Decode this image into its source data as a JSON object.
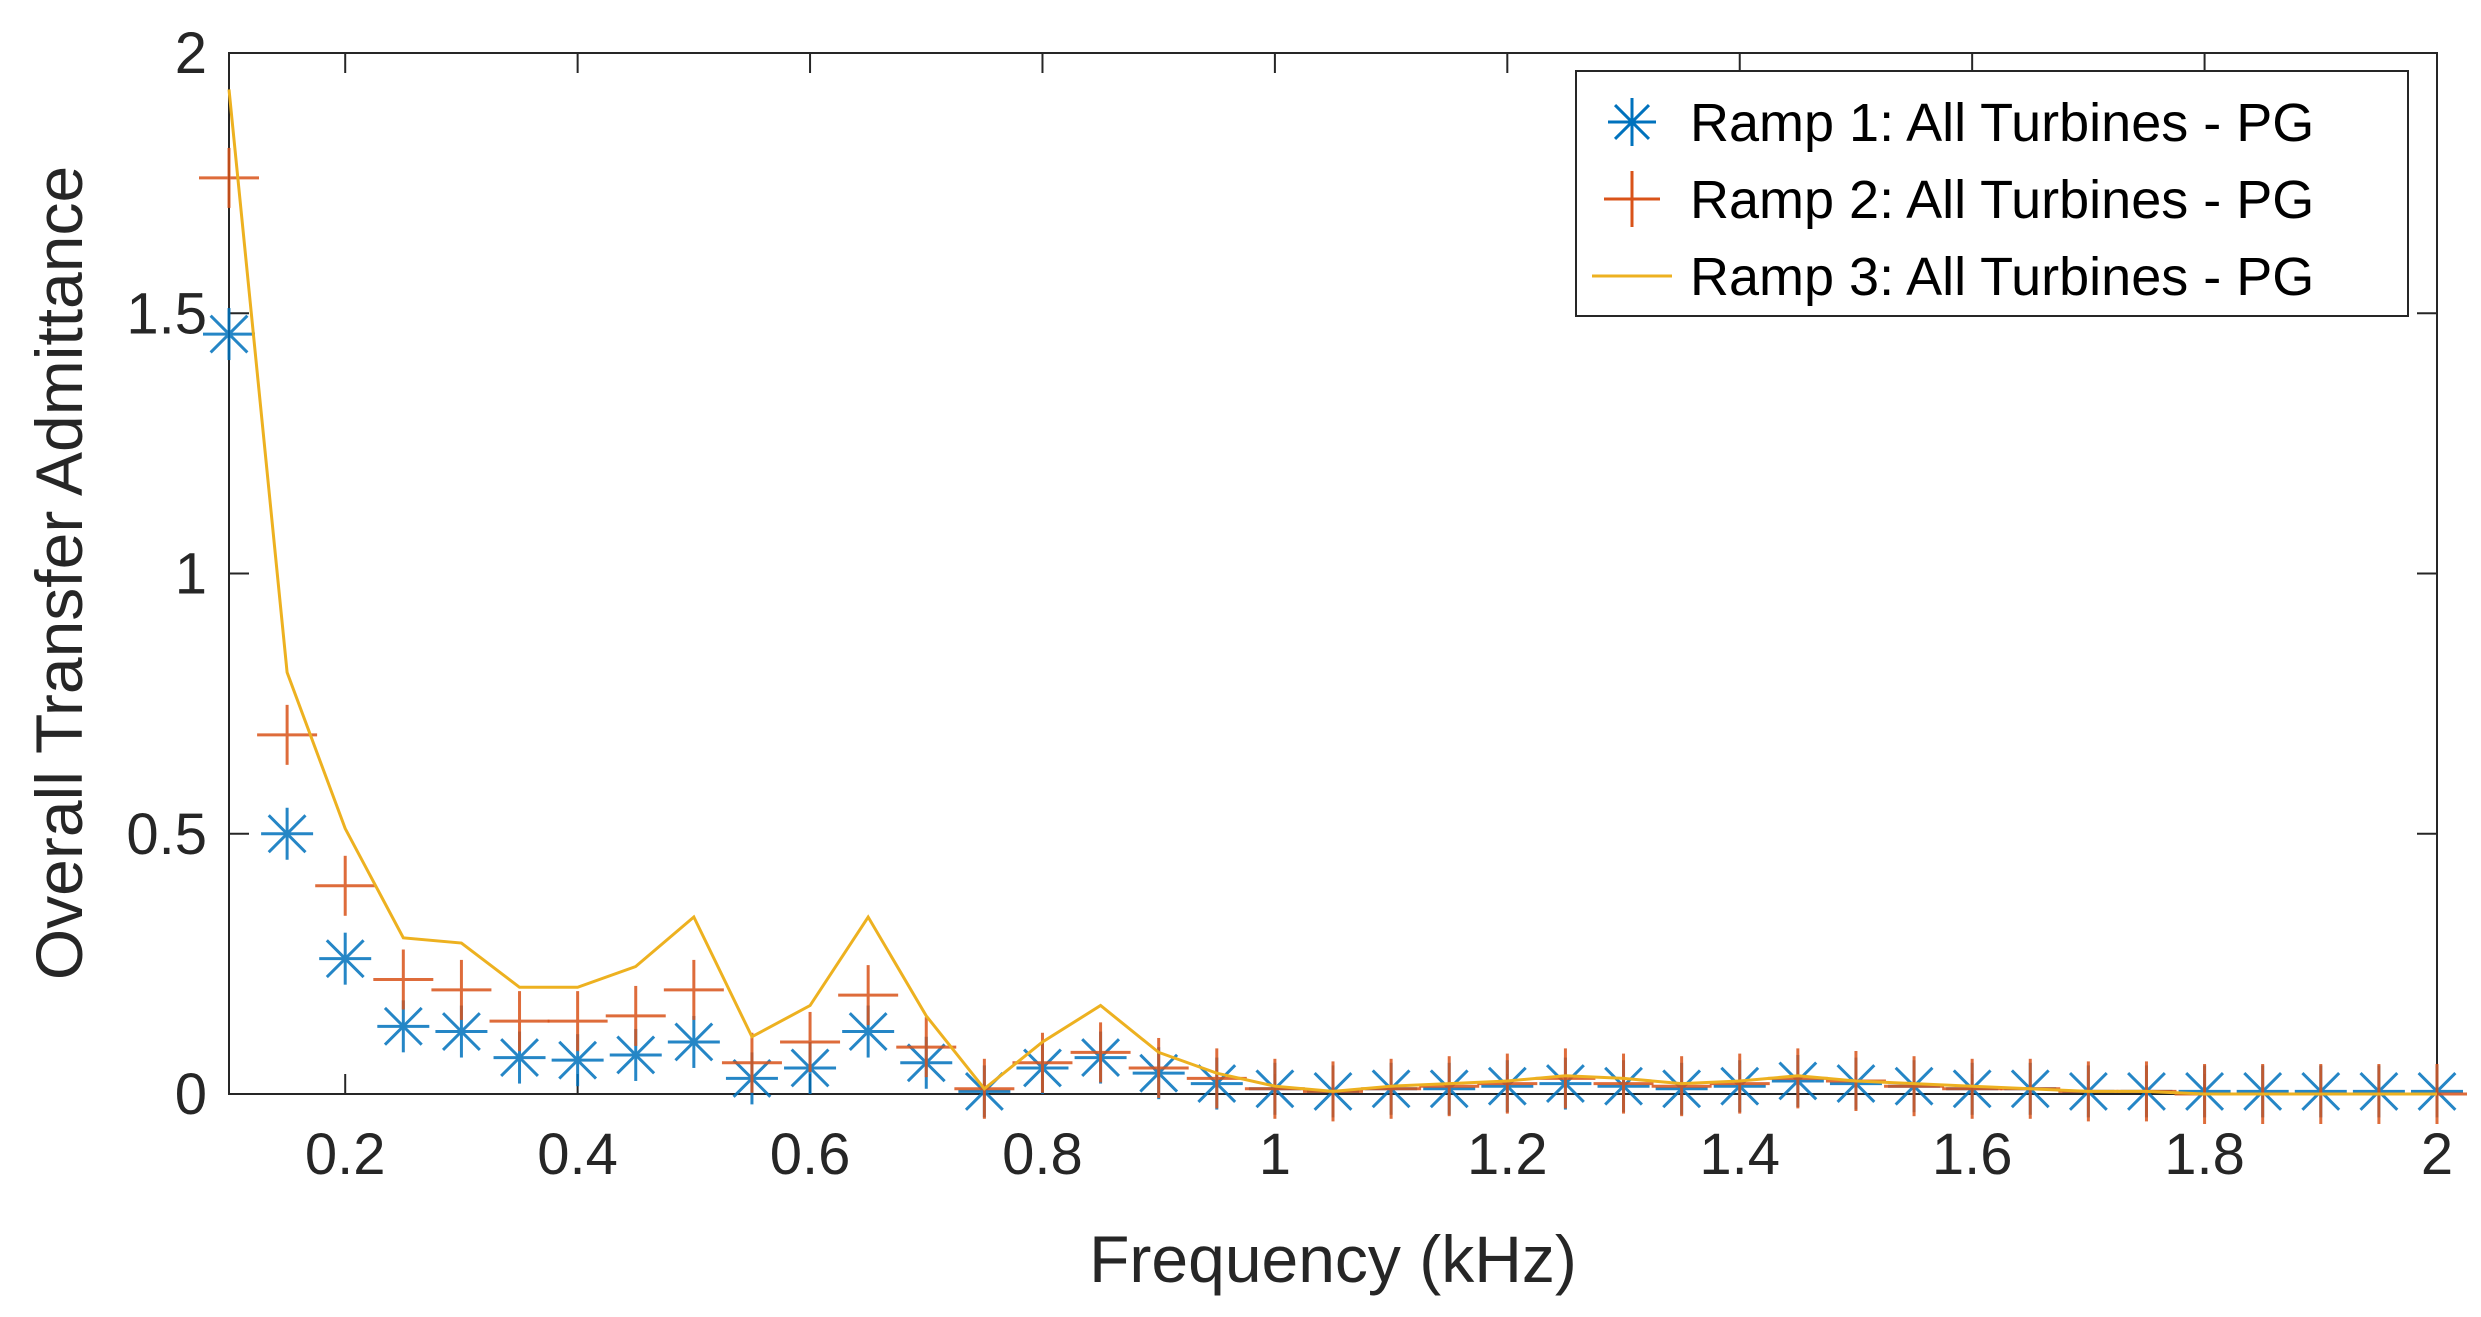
{
  "chart_data": {
    "type": "line",
    "title": "",
    "xlabel": "Frequency (kHz)",
    "ylabel": "Overall Transfer Admittance",
    "xlim": [
      0.1,
      2.0
    ],
    "ylim": [
      0,
      2
    ],
    "xticks": [
      0.2,
      0.4,
      0.6,
      0.8,
      1,
      1.2,
      1.4,
      1.6,
      1.8,
      2
    ],
    "xtick_labels": [
      "0.2",
      "0.4",
      "0.6",
      "0.8",
      "1",
      "1.2",
      "1.4",
      "1.6",
      "1.8",
      "2"
    ],
    "yticks": [
      0,
      0.5,
      1,
      1.5,
      2
    ],
    "ytick_labels": [
      "0",
      "0.5",
      "1",
      "1.5",
      "2"
    ],
    "grid": false,
    "legend_location": "top-right",
    "x": [
      0.1,
      0.15,
      0.2,
      0.25,
      0.3,
      0.35,
      0.4,
      0.45,
      0.5,
      0.55,
      0.6,
      0.65,
      0.7,
      0.75,
      0.8,
      0.85,
      0.9,
      0.95,
      1.0,
      1.05,
      1.1,
      1.15,
      1.2,
      1.25,
      1.3,
      1.35,
      1.4,
      1.45,
      1.5,
      1.55,
      1.6,
      1.65,
      1.7,
      1.75,
      1.8,
      1.85,
      1.9,
      1.95,
      2.0
    ],
    "series": [
      {
        "name": "Ramp 1: All Turbines - PG",
        "marker": "asterisk",
        "color": "#0072BD",
        "values": [
          1.46,
          0.5,
          0.26,
          0.13,
          0.12,
          0.07,
          0.065,
          0.075,
          0.1,
          0.03,
          0.05,
          0.12,
          0.06,
          0.005,
          0.05,
          0.07,
          0.04,
          0.02,
          0.01,
          0.005,
          0.01,
          0.01,
          0.015,
          0.02,
          0.015,
          0.01,
          0.015,
          0.025,
          0.02,
          0.015,
          0.01,
          0.01,
          0.005,
          0.005,
          0.005,
          0.005,
          0.005,
          0.005,
          0.005
        ]
      },
      {
        "name": "Ramp 2: All Turbines - PG",
        "marker": "plus",
        "color": "#D95319",
        "values": [
          1.76,
          0.69,
          0.4,
          0.22,
          0.2,
          0.14,
          0.14,
          0.15,
          0.2,
          0.06,
          0.1,
          0.19,
          0.09,
          0.01,
          0.06,
          0.08,
          0.05,
          0.03,
          0.01,
          0.005,
          0.01,
          0.015,
          0.02,
          0.03,
          0.02,
          0.015,
          0.02,
          0.03,
          0.025,
          0.015,
          0.01,
          0.01,
          0.005,
          0.005,
          0.0,
          0.0,
          0.0,
          0.0,
          0.0
        ]
      },
      {
        "name": "Ramp 3: All Turbines - PG",
        "marker": "line",
        "color": "#EDB120",
        "values": [
          1.93,
          0.81,
          0.51,
          0.3,
          0.29,
          0.205,
          0.205,
          0.245,
          0.34,
          0.11,
          0.17,
          0.34,
          0.15,
          0.01,
          0.1,
          0.17,
          0.08,
          0.04,
          0.015,
          0.005,
          0.015,
          0.02,
          0.025,
          0.035,
          0.03,
          0.02,
          0.025,
          0.035,
          0.025,
          0.02,
          0.015,
          0.01,
          0.005,
          0.005,
          0.0,
          0.0,
          0.0,
          0.0,
          0.0
        ]
      }
    ]
  }
}
